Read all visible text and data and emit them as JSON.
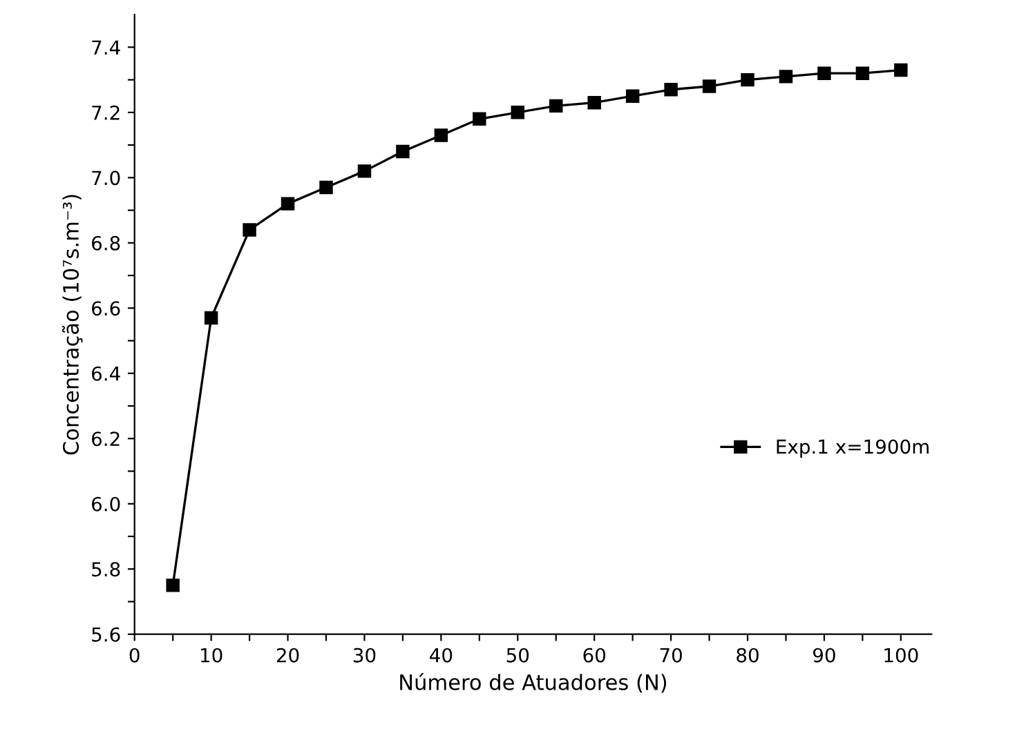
{
  "chart_data": {
    "type": "line",
    "xlabel": "Número de Atuadores (N)",
    "ylabel": "Concentração (10⁷s.m⁻³)",
    "x": [
      5,
      10,
      15,
      20,
      25,
      30,
      35,
      40,
      45,
      50,
      55,
      60,
      65,
      70,
      75,
      80,
      85,
      90,
      95,
      100
    ],
    "series": [
      {
        "name": "Exp.1 x=1900m",
        "color": "#000000",
        "values": [
          5.75,
          6.57,
          6.84,
          6.92,
          6.97,
          7.02,
          7.08,
          7.13,
          7.18,
          7.2,
          7.22,
          7.23,
          7.25,
          7.27,
          7.28,
          7.3,
          7.31,
          7.32,
          7.32,
          7.33
        ]
      }
    ],
    "xlim": [
      0,
      104
    ],
    "ylim": [
      5.6,
      7.5
    ],
    "xticks": [
      0,
      {
        "value": 5,
        "label": null
      },
      10,
      {
        "value": 15,
        "label": null
      },
      20,
      {
        "value": 25,
        "label": null
      },
      30,
      {
        "value": 35,
        "label": null
      },
      40,
      {
        "value": 45,
        "label": null
      },
      50,
      {
        "value": 55,
        "label": null
      },
      60,
      {
        "value": 65,
        "label": null
      },
      70,
      {
        "value": 75,
        "label": null
      },
      80,
      {
        "value": 85,
        "label": null
      },
      90,
      {
        "value": 95,
        "label": null
      },
      100
    ],
    "yticks": [
      5.6,
      {
        "value": 5.7,
        "label": null
      },
      5.8,
      {
        "value": 5.9,
        "label": null
      },
      {
        "value": 6.0,
        "label": "6.0"
      },
      {
        "value": 6.1,
        "label": null
      },
      6.2,
      {
        "value": 6.3,
        "label": null
      },
      6.4,
      {
        "value": 6.5,
        "label": null
      },
      6.6,
      {
        "value": 6.7,
        "label": null
      },
      6.8,
      {
        "value": 6.9,
        "label": null
      },
      {
        "value": 7.0,
        "label": "7.0"
      },
      {
        "value": 7.1,
        "label": null
      },
      7.2,
      {
        "value": 7.3,
        "label": null
      },
      7.4
    ],
    "marker": "square",
    "line_style": "solid",
    "legend": "right",
    "grid": false
  }
}
